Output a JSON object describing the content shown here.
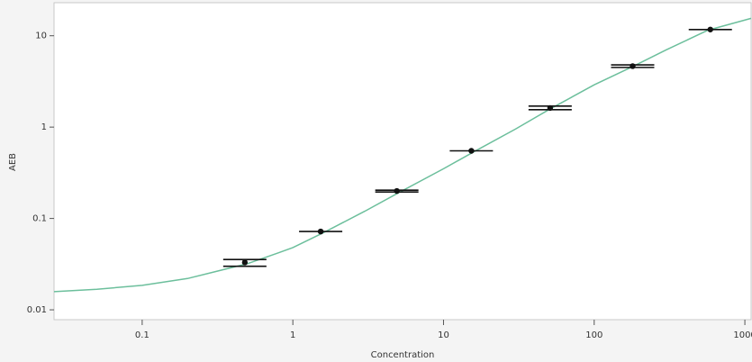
{
  "chart_data": {
    "type": "scatter",
    "x_label": "Concentration",
    "y_label": "AEB",
    "log_x": true,
    "log_y": true,
    "xlim": [
      0.026,
      1100
    ],
    "ylim": [
      0.0078,
      23
    ],
    "xticks": [
      0.1,
      1,
      10,
      100,
      1000
    ],
    "yticks": [
      10,
      1,
      0.1,
      0.01
    ],
    "points": {
      "color": "#111111",
      "x": [
        0.48,
        1.53,
        4.9,
        15.3,
        51,
        180,
        590
      ],
      "values": [
        0.033,
        0.072,
        0.2,
        0.55,
        1.62,
        4.65,
        11.7
      ],
      "replicates": [
        [
          0.0355,
          0.03
        ],
        [
          0.072
        ],
        [
          0.204,
          0.195
        ],
        [
          0.55
        ],
        [
          1.7,
          1.55
        ],
        [
          4.8,
          4.5
        ],
        [
          11.7
        ]
      ]
    },
    "fit": {
      "color": "#6cbf9c",
      "x": [
        0.026,
        0.05,
        0.1,
        0.2,
        0.3,
        0.5,
        0.8,
        1,
        1.6,
        3,
        5,
        10,
        16,
        30,
        50,
        100,
        180,
        300,
        570,
        1100
      ],
      "values": [
        0.0158,
        0.0168,
        0.0185,
        0.022,
        0.026,
        0.032,
        0.042,
        0.048,
        0.07,
        0.12,
        0.19,
        0.35,
        0.54,
        0.95,
        1.55,
        2.9,
        4.6,
        7.0,
        11.5,
        15.5
      ]
    }
  }
}
